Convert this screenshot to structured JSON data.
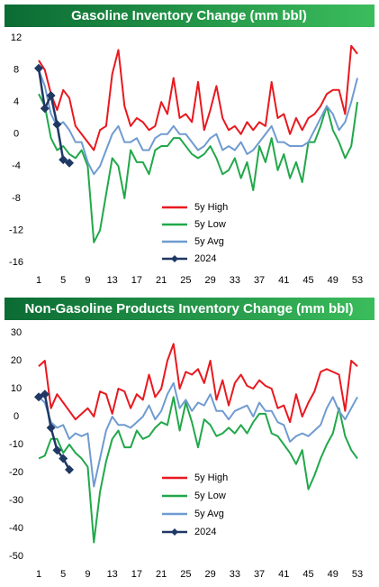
{
  "chart_data": [
    {
      "type": "line",
      "title": "Gasoline Inventory Change (mm bbl)",
      "x": [
        1,
        2,
        3,
        4,
        5,
        6,
        7,
        8,
        9,
        10,
        11,
        12,
        13,
        14,
        15,
        16,
        17,
        18,
        19,
        20,
        21,
        22,
        23,
        24,
        25,
        26,
        27,
        28,
        29,
        30,
        31,
        32,
        33,
        34,
        35,
        36,
        37,
        38,
        39,
        40,
        41,
        42,
        43,
        44,
        45,
        46,
        47,
        48,
        49,
        50,
        51,
        52,
        53
      ],
      "xlim": [
        1,
        53
      ],
      "xticks": [
        1,
        5,
        9,
        13,
        17,
        21,
        25,
        29,
        33,
        37,
        41,
        45,
        49,
        53
      ],
      "ylim": [
        -16,
        12
      ],
      "yticks": [
        -16,
        -12,
        -8,
        -4,
        0,
        4,
        8,
        12
      ],
      "series": [
        {
          "name": "5y High",
          "color": "#e8191f",
          "values": [
            9.2,
            8,
            5,
            3,
            5.5,
            4.5,
            1,
            0,
            -1,
            -2,
            0.5,
            1,
            7.5,
            10.5,
            3.5,
            1,
            2,
            1.5,
            0.5,
            1,
            4,
            2.5,
            7,
            2,
            2.5,
            1.5,
            6.5,
            0.5,
            3,
            6,
            2,
            0.5,
            1,
            0,
            1.5,
            0.5,
            1.5,
            1,
            6.5,
            2,
            2.5,
            0,
            2,
            0.5,
            2,
            2.5,
            3.5,
            5,
            5.5,
            5.5,
            2.5,
            11,
            10
          ]
        },
        {
          "name": "5y Low",
          "color": "#21a84a",
          "values": [
            5,
            3.5,
            -0.5,
            -2,
            -1.5,
            -2.5,
            -3,
            -2,
            -4,
            -13.5,
            -12,
            -7.5,
            -3,
            -4,
            -8,
            -2,
            -3.5,
            -3.5,
            -5,
            -2,
            -1.5,
            -1.5,
            -0.5,
            -0.5,
            -1.5,
            -2.5,
            -3,
            -2.5,
            -1.5,
            -3,
            -5,
            -4.5,
            -3,
            -5.5,
            -3.5,
            -7,
            -1.5,
            -3.5,
            -0.5,
            -4.5,
            -2.5,
            -5.5,
            -3.5,
            -6,
            -1,
            -1,
            1,
            3.5,
            0.5,
            -1,
            -3,
            -1.5,
            4
          ]
        },
        {
          "name": "5y Avg",
          "color": "#6f9bd1",
          "values": [
            8,
            6,
            2.5,
            1,
            1.5,
            0.5,
            -1,
            -1,
            -3.5,
            -5,
            -4,
            -2,
            0,
            1,
            -1,
            -1,
            -0.5,
            -2,
            -2,
            -0.5,
            0,
            0,
            1,
            0,
            0,
            -1,
            -2,
            -1.5,
            -0.5,
            0,
            -2,
            -1.5,
            -2,
            -1,
            -2.5,
            -2,
            -1,
            0,
            1,
            -1,
            -1,
            -1.5,
            -1.5,
            -1.5,
            -1,
            0.5,
            2,
            3.5,
            2.5,
            0.5,
            1.5,
            4,
            7
          ]
        },
        {
          "name": "2024",
          "color": "#1f3864",
          "marker": "diamond",
          "values": [
            8.2,
            3.2,
            4.8,
            1.2,
            -3.2,
            -3.6,
            null,
            null,
            null,
            null,
            null,
            null,
            null,
            null,
            null,
            null,
            null,
            null,
            null,
            null,
            null,
            null,
            null,
            null,
            null,
            null,
            null,
            null,
            null,
            null,
            null,
            null,
            null,
            null,
            null,
            null,
            null,
            null,
            null,
            null,
            null,
            null,
            null,
            null,
            null,
            null,
            null,
            null,
            null,
            null,
            null,
            null,
            null
          ]
        }
      ]
    },
    {
      "type": "line",
      "title": "Non-Gasoline Products Inventory Change (mm bbl)",
      "x": [
        1,
        2,
        3,
        4,
        5,
        6,
        7,
        8,
        9,
        10,
        11,
        12,
        13,
        14,
        15,
        16,
        17,
        18,
        19,
        20,
        21,
        22,
        23,
        24,
        25,
        26,
        27,
        28,
        29,
        30,
        31,
        32,
        33,
        34,
        35,
        36,
        37,
        38,
        39,
        40,
        41,
        42,
        43,
        44,
        45,
        46,
        47,
        48,
        49,
        50,
        51,
        52,
        53
      ],
      "xlim": [
        1,
        53
      ],
      "xticks": [
        1,
        5,
        9,
        13,
        17,
        21,
        25,
        29,
        33,
        37,
        41,
        45,
        49,
        53
      ],
      "ylim": [
        -50,
        30
      ],
      "yticks": [
        -50,
        -40,
        -30,
        -20,
        -10,
        0,
        10,
        20,
        30
      ],
      "series": [
        {
          "name": "5y High",
          "color": "#e8191f",
          "values": [
            18,
            20,
            3,
            8,
            5,
            2,
            -1,
            1,
            3,
            0,
            9,
            8,
            1,
            10,
            9,
            3,
            8,
            6,
            15,
            7,
            10,
            20,
            26,
            10,
            16,
            15,
            17,
            12,
            20,
            6,
            13,
            4,
            12,
            15,
            11,
            10,
            13,
            11,
            10,
            3,
            4,
            -2,
            8,
            0,
            5,
            9,
            16,
            17,
            16,
            15,
            2,
            20,
            18
          ]
        },
        {
          "name": "5y Low",
          "color": "#21a84a",
          "values": [
            -15,
            -14,
            -8,
            -8,
            -13,
            -10,
            -13,
            -15,
            -18,
            -45,
            -27,
            -16,
            -8,
            -5,
            -11,
            -11,
            -5,
            -8,
            -7,
            -4,
            -2,
            -3,
            7,
            -5,
            5,
            -2,
            -11,
            -1,
            -3,
            -7,
            -6,
            -4,
            -6,
            -3,
            -6,
            -2,
            1,
            1,
            -6,
            -7,
            -10,
            -13,
            -17,
            -12,
            -26,
            -21,
            -15,
            -10,
            -6,
            3,
            -7,
            -12,
            -15
          ]
        },
        {
          "name": "5y Avg",
          "color": "#6f9bd1",
          "values": [
            7,
            5,
            -2,
            -4,
            -3,
            -8,
            -6,
            -7,
            -6,
            -25,
            -15,
            -5,
            0,
            -3,
            -3,
            -4,
            -2,
            0,
            4,
            -1,
            2,
            8,
            12,
            3,
            6,
            2,
            5,
            4,
            8,
            2,
            2,
            -1,
            2,
            3,
            4,
            0,
            5,
            2,
            2,
            -2,
            -3,
            -9,
            -7,
            -6,
            -7,
            -5,
            -3,
            3,
            7,
            2,
            -1,
            3,
            7
          ]
        },
        {
          "name": "2024",
          "color": "#1f3864",
          "marker": "diamond",
          "values": [
            7,
            8,
            -4,
            -12,
            -15,
            -19,
            null,
            null,
            null,
            null,
            null,
            null,
            null,
            null,
            null,
            null,
            null,
            null,
            null,
            null,
            null,
            null,
            null,
            null,
            null,
            null,
            null,
            null,
            null,
            null,
            null,
            null,
            null,
            null,
            null,
            null,
            null,
            null,
            null,
            null,
            null,
            null,
            null,
            null,
            null,
            null,
            null,
            null,
            null,
            null,
            null,
            null,
            null
          ]
        }
      ]
    }
  ]
}
